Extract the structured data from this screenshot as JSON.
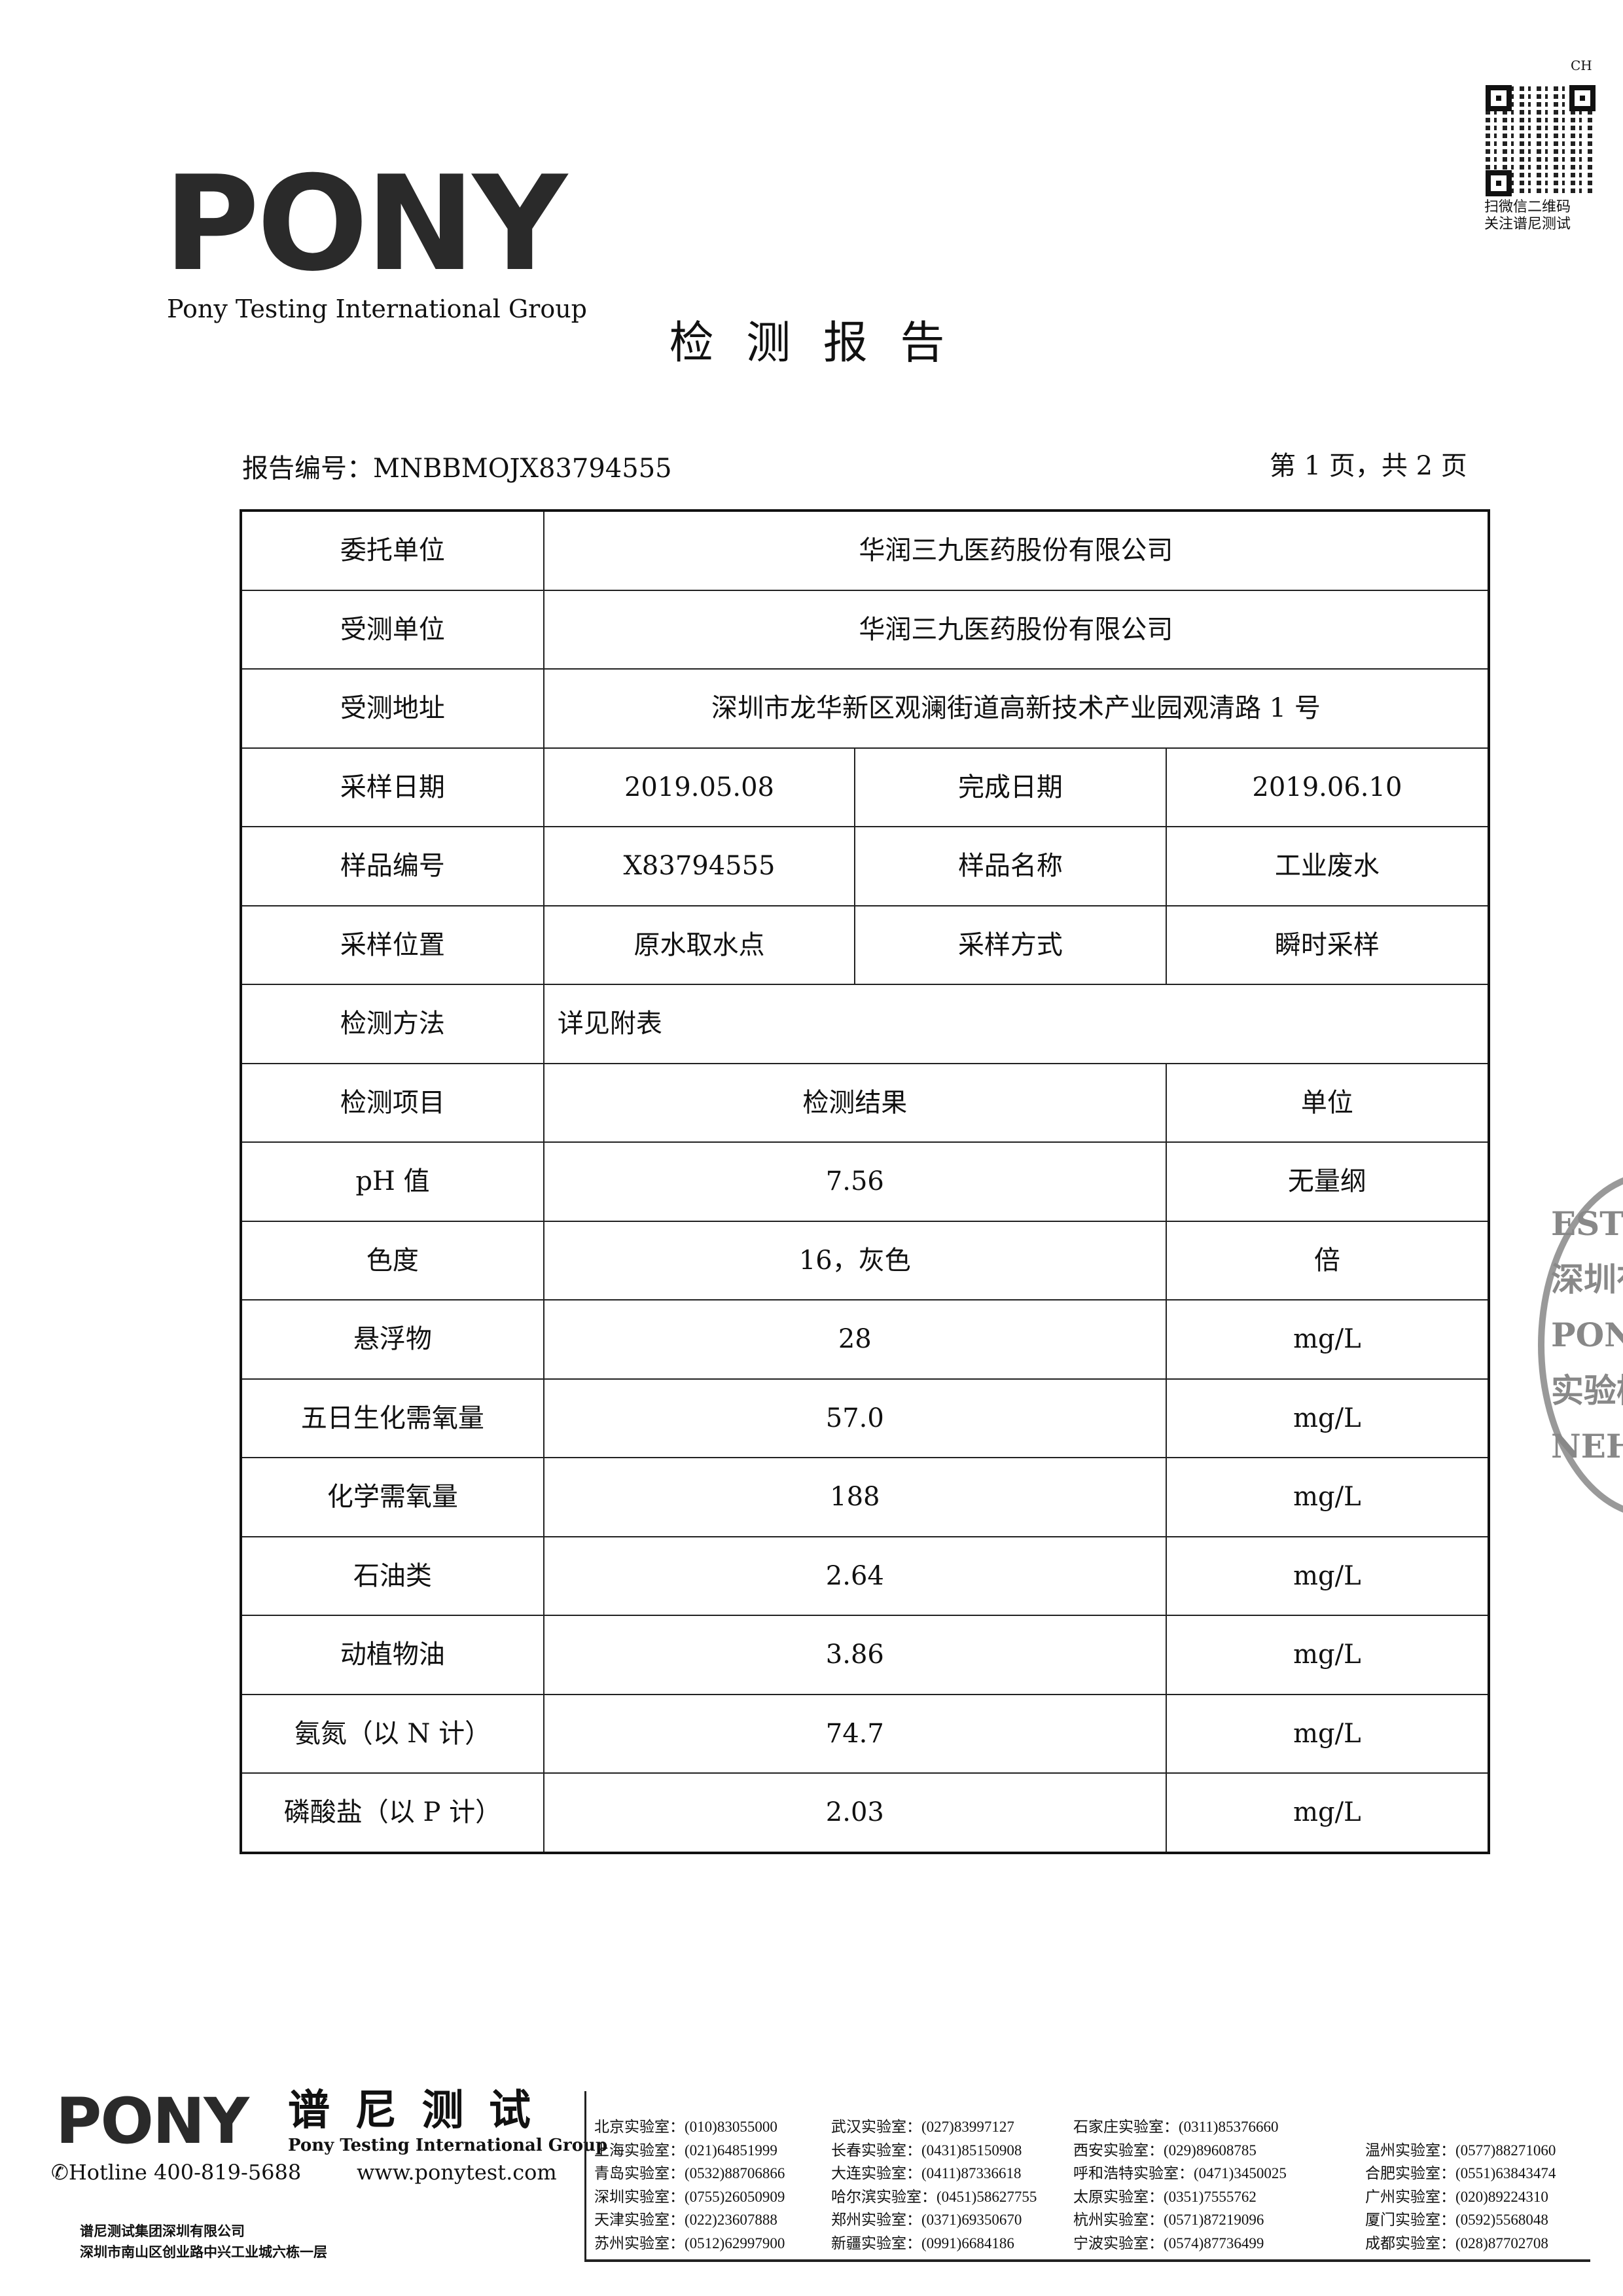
{
  "header": {
    "corner_mark": "CH",
    "logo_text": "PONY",
    "company_en": "Pony Testing International Group",
    "qr_caption": [
      "扫微信二维码",
      "关注谱尼测试"
    ],
    "title": "检 测 报 告",
    "report_no_label": "报告编号：",
    "report_no": "MNBBMOJX83794555",
    "page_info": "第 1 页，共 2 页"
  },
  "info": {
    "client_label": "委托单位",
    "client": "华润三九医药股份有限公司",
    "tested_label": "受测单位",
    "tested": "华润三九医药股份有限公司",
    "address_label": "受测地址",
    "address": "深圳市龙华新区观澜街道高新技术产业园观清路 1 号",
    "sample_date_label": "采样日期",
    "sample_date": "2019.05.08",
    "finish_date_label": "完成日期",
    "finish_date": "2019.06.10",
    "sample_no_label": "样品编号",
    "sample_no": "X83794555",
    "sample_name_label": "样品名称",
    "sample_name": "工业废水",
    "location_label": "采样位置",
    "location": "原水取水点",
    "method_label": "采样方式",
    "method": "瞬时采样",
    "test_method_label": "检测方法",
    "test_method": "详见附表"
  },
  "results": {
    "headers": [
      "检测项目",
      "检测结果",
      "单位"
    ],
    "rows": [
      [
        "pH 值",
        "7.56",
        "无量纲"
      ],
      [
        "色度",
        "16，灰色",
        "倍"
      ],
      [
        "悬浮物",
        "28",
        "mg/L"
      ],
      [
        "五日生化需氧量",
        "57.0",
        "mg/L"
      ],
      [
        "化学需氧量",
        "188",
        "mg/L"
      ],
      [
        "石油类",
        "2.64",
        "mg/L"
      ],
      [
        "动植物油",
        "3.86",
        "mg/L"
      ],
      [
        "氨氮（以 N 计）",
        "74.7",
        "mg/L"
      ],
      [
        "磷酸盐（以 P 计）",
        "2.03",
        "mg/L"
      ]
    ]
  },
  "stamp": {
    "text": [
      "ESTI",
      "深圳有",
      "PON",
      "实验检",
      "NEH"
    ]
  },
  "footer": {
    "logo_text": "PONY",
    "logo_cn": "谱 尼 测 试",
    "company_en": "Pony Testing International Group",
    "hotline": "Hotline 400-819-5688",
    "website": "www.ponytest.com",
    "company_cn": "谱尼测试集团深圳有限公司",
    "address_cn": "深圳市南山区创业路中兴工业城六栋一层",
    "labs": [
      [
        "北京实验室：(010)83055000",
        "上海实验室：(021)64851999",
        "青岛实验室：(0532)88706866",
        "深圳实验室：(0755)26050909",
        "天津实验室：(022)23607888",
        "苏州实验室：(0512)62997900"
      ],
      [
        "武汉实验室：(027)83997127",
        "长春实验室：(0431)85150908",
        "大连实验室：(0411)87336618",
        "哈尔滨实验室：(0451)58627755",
        "郑州实验室：(0371)69350670",
        "新疆实验室：(0991)6684186"
      ],
      [
        "石家庄实验室：(0311)85376660",
        "西安实验室：(029)89608785",
        "呼和浩特实验室：(0471)3450025",
        "太原实验室：(0351)7555762",
        "杭州实验室：(0571)87219096",
        "宁波实验室：(0574)87736499"
      ],
      [
        "",
        "温州实验室：(0577)88271060",
        "合肥实验室：(0551)63843474",
        "广州实验室：(020)89224310",
        "厦门实验室：(0592)5568048",
        "成都实验室：(028)87702708"
      ]
    ]
  }
}
